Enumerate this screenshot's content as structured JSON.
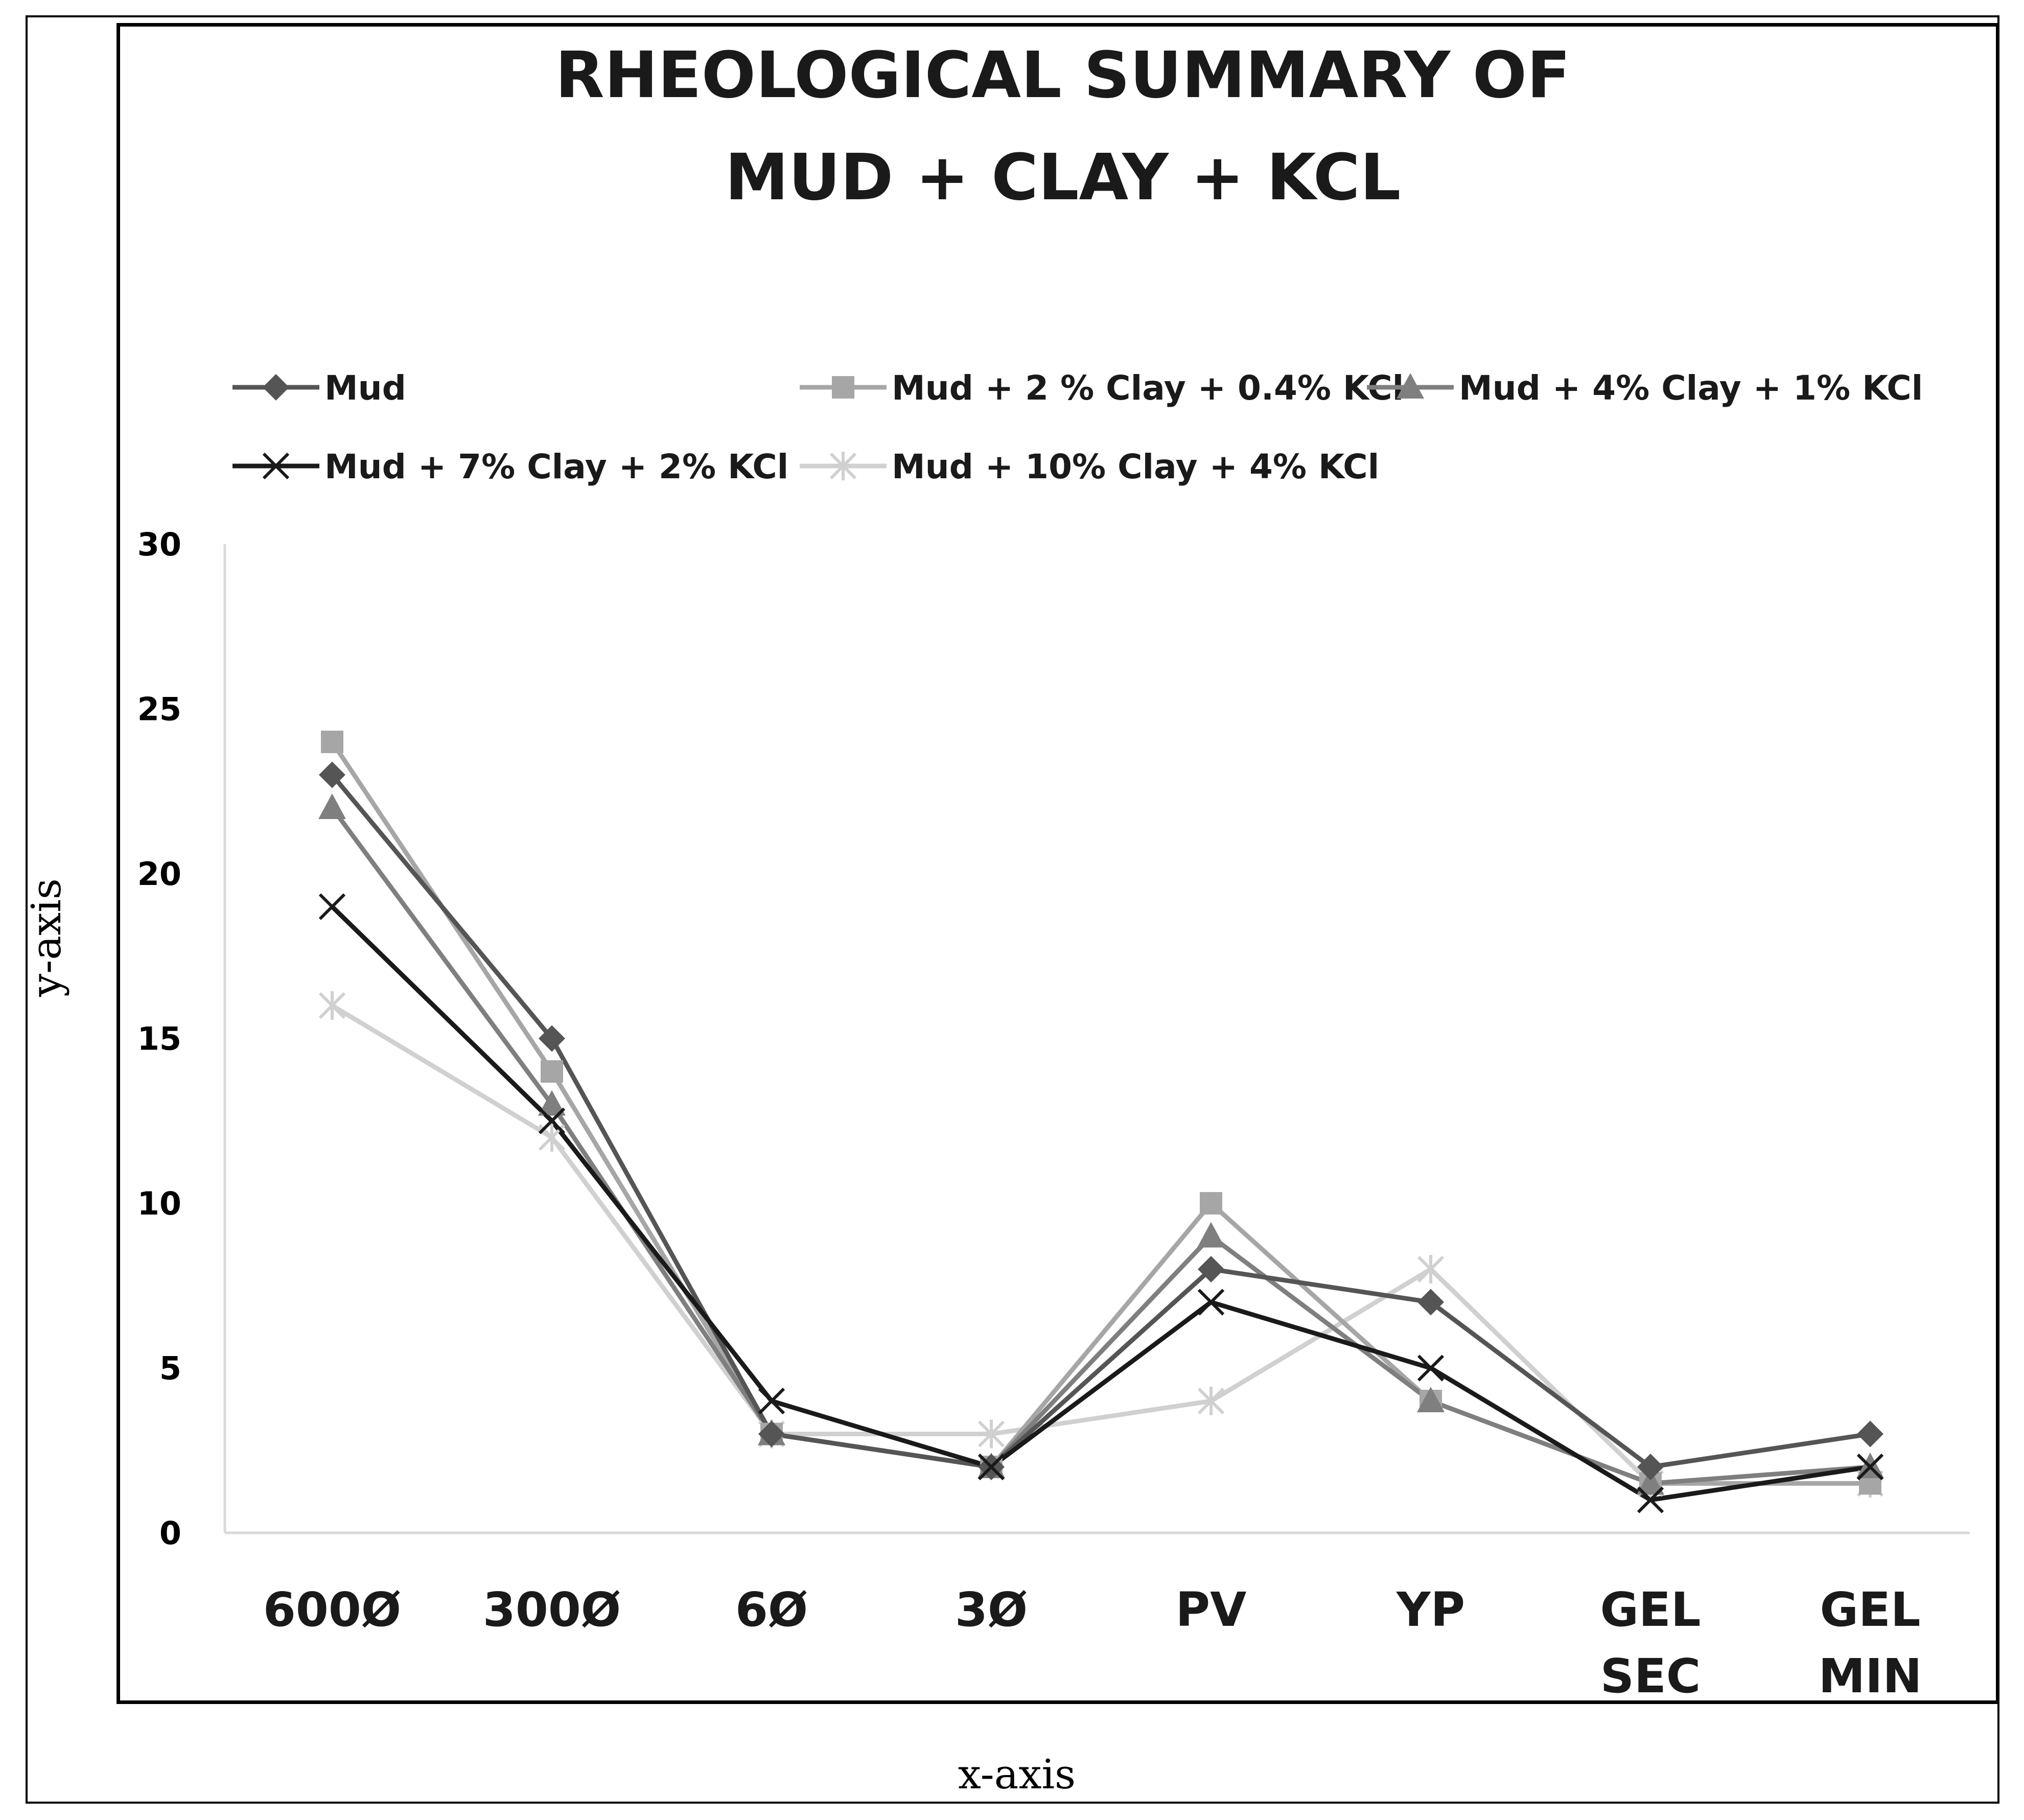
{
  "chart_data": {
    "type": "line",
    "title": [
      "RHEOLOGICAL SUMMARY OF",
      "MUD + CLAY + KCL"
    ],
    "xlabel": "x-axis",
    "ylabel": "y-axis",
    "ylim": [
      0,
      30
    ],
    "yticks": [
      0,
      5,
      10,
      15,
      20,
      25,
      30
    ],
    "grid": false,
    "legend_position": "top",
    "categories": [
      [
        "600Ø"
      ],
      [
        "300Ø"
      ],
      [
        "6Ø"
      ],
      [
        "3Ø"
      ],
      [
        "PV"
      ],
      [
        "YP"
      ],
      [
        "GEL",
        "SEC"
      ],
      [
        "GEL",
        "MIN"
      ]
    ],
    "series": [
      {
        "name": "Mud",
        "marker": "diamond",
        "color": "#555555",
        "values": [
          23,
          15,
          3,
          2,
          8,
          7,
          2,
          3
        ]
      },
      {
        "name": "Mud + 2 % Clay + 0.4% KCl",
        "marker": "square",
        "color": "#a6a6a6",
        "values": [
          24,
          14,
          3,
          2,
          10,
          4,
          1.5,
          1.5
        ]
      },
      {
        "name": "Mud + 4% Clay + 1% KCl",
        "marker": "triangle",
        "color": "#7f7f7f",
        "values": [
          22,
          13,
          3,
          2,
          9,
          4,
          1.5,
          2
        ]
      },
      {
        "name": "Mud + 7% Clay + 2% KCl",
        "marker": "x",
        "color": "#1a1a1a",
        "values": [
          19,
          12.5,
          4,
          2,
          7,
          5,
          1,
          2
        ]
      },
      {
        "name": "Mud + 10% Clay + 4% KCl",
        "marker": "star",
        "color": "#d0d0d0",
        "values": [
          16,
          12,
          3,
          3,
          4,
          8,
          1.5,
          1.5
        ]
      }
    ]
  }
}
